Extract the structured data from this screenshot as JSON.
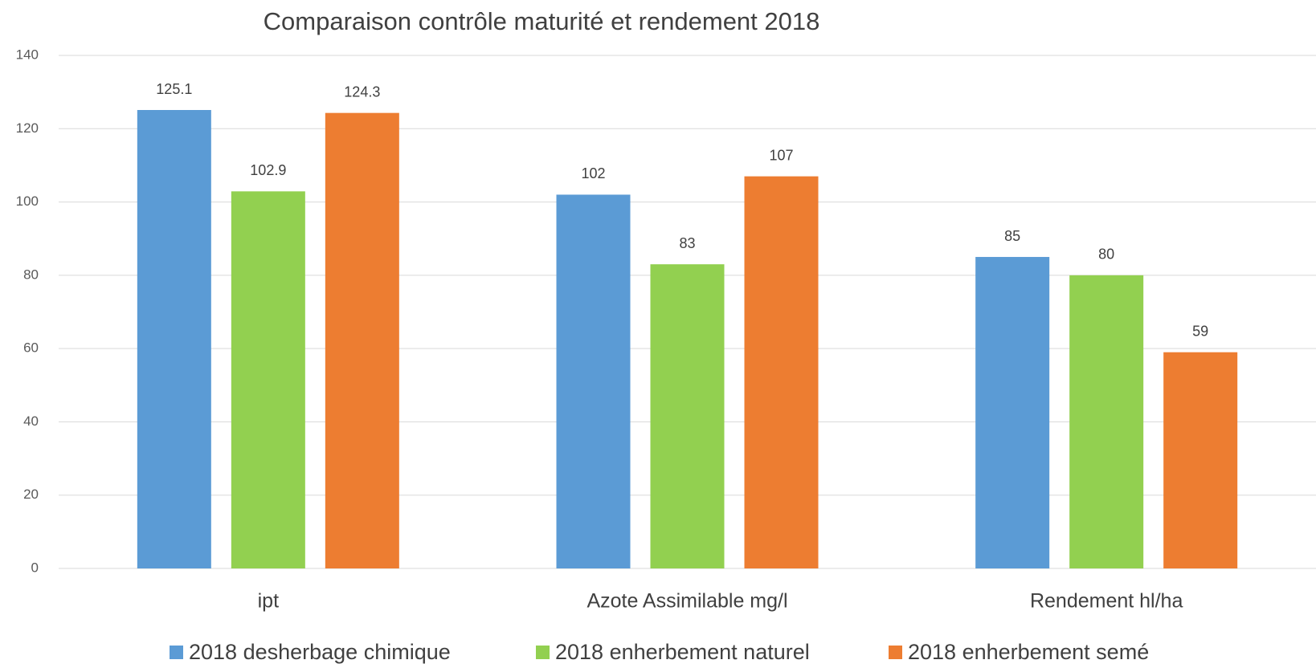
{
  "chart_data": {
    "type": "bar",
    "title": "Comparaison contrôle maturité et rendement 2018",
    "categories": [
      "ipt",
      "Azote Assimilable mg/l",
      "Rendement hl/ha"
    ],
    "series": [
      {
        "name": "2018 desherbage chimique",
        "color": "#5b9bd5",
        "values": [
          125.1,
          102,
          85
        ]
      },
      {
        "name": "2018 enherbement naturel",
        "color": "#92d050",
        "values": [
          102.9,
          83,
          80
        ]
      },
      {
        "name": "2018 enherbement semé",
        "color": "#ed7d31",
        "values": [
          124.3,
          107,
          59
        ]
      }
    ],
    "ylim": [
      0,
      140
    ],
    "yticks": [
      0,
      20,
      40,
      60,
      80,
      100,
      120,
      140
    ],
    "grid": true,
    "legend": "bottom"
  }
}
